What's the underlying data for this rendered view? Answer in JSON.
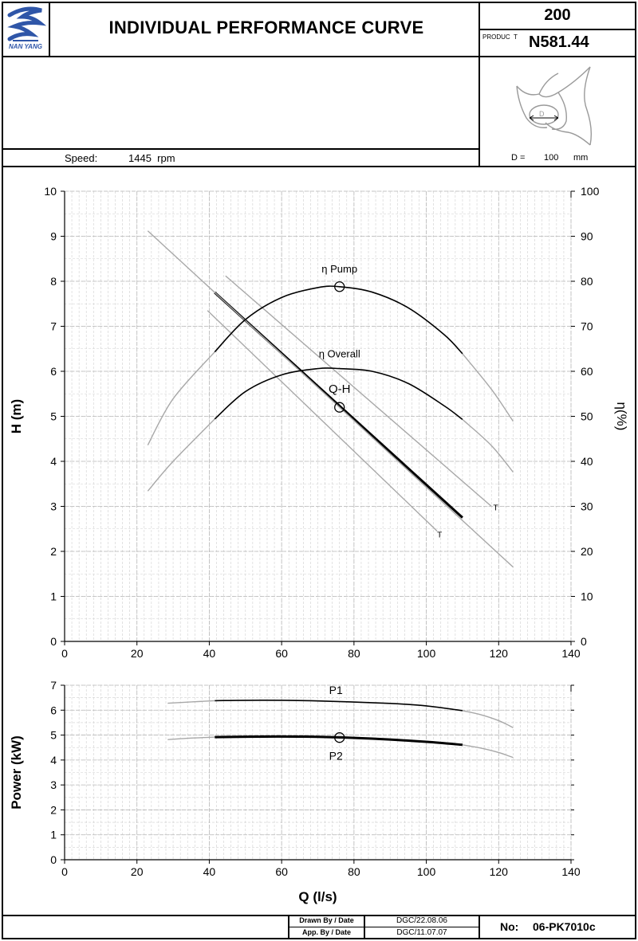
{
  "header": {
    "logo_text": "NAN YANG",
    "title": "INDIVIDUAL PERFORMANCE  CURVE",
    "model_number": "200",
    "product_label": "PRODUC  T",
    "product_code": "N581.44"
  },
  "specs": {
    "speed_label": "Speed:",
    "speed_value": "1445  rpm",
    "impeller_glyph": "D",
    "diameter_label": "D =",
    "diameter_value": "100",
    "diameter_unit": "mm"
  },
  "footer": {
    "drawn_label": "Drawn By / Date",
    "drawn_value": "DGC/22.08.06",
    "approved_label": "App. By / Date",
    "approved_value": "DGC/11.07.07",
    "doc_no_label": "No:",
    "doc_no_value": "06-PK7010c"
  },
  "colors": {
    "curve_dark": "#000000",
    "curve_light": "#a8a8a8",
    "grid": "#d0d0d0"
  },
  "chart_data": [
    {
      "type": "line",
      "title": "",
      "xlabel": "",
      "ylabel": "H (m)",
      "y2label": "η(%)",
      "xlim": [
        0,
        140
      ],
      "ylim": [
        0,
        10
      ],
      "y2lim": [
        0,
        100
      ],
      "x_ticks": [
        "0",
        "20",
        "40",
        "60",
        "80",
        "100",
        "120",
        "140"
      ],
      "y_ticks": [
        "0",
        "1",
        "2",
        "3",
        "4",
        "5",
        "6",
        "7",
        "8",
        "9",
        "10"
      ],
      "y2_ticks": [
        "0",
        "10",
        "20",
        "30",
        "40",
        "50",
        "60",
        "70",
        "80",
        "90",
        "100"
      ],
      "grid": true,
      "series": [
        {
          "name": "Q-H",
          "axis": "left",
          "style": "bold",
          "x": [
            41.5,
            110
          ],
          "y": [
            7.75,
            2.75
          ]
        },
        {
          "name": "",
          "axis": "left",
          "style": "light",
          "x": [
            23,
            124
          ],
          "y": [
            9.12,
            1.65
          ]
        },
        {
          "name": "",
          "axis": "left",
          "style": "light",
          "x": [
            44.5,
            118
          ],
          "y": [
            8.12,
            3.0
          ]
        },
        {
          "name": "",
          "axis": "left",
          "style": "light",
          "x": [
            39.5,
            103
          ],
          "y": [
            7.35,
            2.45
          ]
        },
        {
          "name": "η Pump",
          "axis": "right",
          "style": "dark",
          "x": [
            41.5,
            50,
            60,
            70,
            76,
            85,
            95,
            105,
            110
          ],
          "y": [
            64.3,
            71.5,
            76.4,
            78.6,
            78.8,
            77.6,
            74.1,
            68.1,
            63.9
          ]
        },
        {
          "name": "",
          "axis": "right",
          "style": "light",
          "x": [
            23,
            30,
            41.5
          ],
          "y": [
            43.6,
            53.9,
            64.3
          ]
        },
        {
          "name": "",
          "axis": "right",
          "style": "light",
          "x": [
            110,
            118,
            124
          ],
          "y": [
            63.9,
            56.0,
            48.9
          ]
        },
        {
          "name": "η Overall",
          "axis": "right",
          "style": "dark",
          "x": [
            41.5,
            50,
            60,
            70,
            76,
            85,
            95,
            105,
            110
          ],
          "y": [
            49.4,
            55.5,
            59.2,
            60.6,
            60.6,
            60.0,
            57.3,
            52.3,
            49.3
          ]
        },
        {
          "name": "",
          "axis": "right",
          "style": "light",
          "x": [
            23,
            30,
            41.5
          ],
          "y": [
            33.4,
            40.0,
            49.4
          ]
        },
        {
          "name": "",
          "axis": "right",
          "style": "light",
          "x": [
            110,
            118,
            124
          ],
          "y": [
            49.3,
            43.5,
            37.6
          ]
        }
      ],
      "points": [
        {
          "label": "",
          "x": 76,
          "y": 78.8,
          "axis": "right"
        },
        {
          "label": "",
          "x": 76,
          "y": 5.2,
          "axis": "left"
        }
      ],
      "annotations": [
        {
          "text": "T",
          "x": 118.5,
          "y": 2.98
        },
        {
          "text": "T",
          "x": 103,
          "y": 2.38
        }
      ]
    },
    {
      "type": "line",
      "title": "",
      "xlabel": "Q (l/s)",
      "ylabel": "Power (kW)",
      "xlim": [
        0,
        140
      ],
      "ylim": [
        0,
        7
      ],
      "x_ticks": [
        "0",
        "20",
        "40",
        "60",
        "80",
        "100",
        "120",
        "140"
      ],
      "y_ticks": [
        "0",
        "1",
        "2",
        "3",
        "4",
        "5",
        "6",
        "7"
      ],
      "grid": true,
      "series": [
        {
          "name": "P1",
          "style": "dark",
          "x": [
            41.5,
            55,
            70,
            90,
            100,
            110
          ],
          "y": [
            6.38,
            6.4,
            6.37,
            6.27,
            6.17,
            5.98
          ]
        },
        {
          "name": "",
          "style": "light",
          "x": [
            28.5,
            35,
            41.5
          ],
          "y": [
            6.28,
            6.33,
            6.38
          ]
        },
        {
          "name": "",
          "style": "light",
          "x": [
            110,
            115,
            120,
            124
          ],
          "y": [
            5.98,
            5.82,
            5.58,
            5.3
          ]
        },
        {
          "name": "P2",
          "style": "bold",
          "x": [
            41.5,
            55,
            70,
            85,
            100,
            110
          ],
          "y": [
            4.92,
            4.94,
            4.93,
            4.86,
            4.73,
            4.61
          ]
        },
        {
          "name": "",
          "style": "light",
          "x": [
            28.5,
            35,
            41.5
          ],
          "y": [
            4.82,
            4.88,
            4.92
          ]
        },
        {
          "name": "",
          "style": "light",
          "x": [
            110,
            115,
            120,
            124
          ],
          "y": [
            4.61,
            4.48,
            4.3,
            4.1
          ]
        }
      ],
      "points": [
        {
          "label": "",
          "x": 76,
          "y": 4.9
        }
      ]
    }
  ]
}
